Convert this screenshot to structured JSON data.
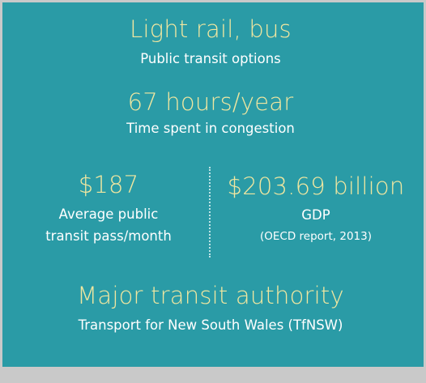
{
  "stats": [
    {
      "value": "Light rail, bus",
      "label": "Public transit options"
    },
    {
      "value": "67 hours/year",
      "label": "Time spent in congestion"
    },
    {
      "value": "$187",
      "label_lines": [
        "Average public",
        "transit pass/month"
      ]
    },
    {
      "value": "$203.69 billion",
      "label": "GDP",
      "note": "(OECD report, 2013)"
    },
    {
      "value": "Major transit authority",
      "label": "Transport for New South Wales (TfNSW)"
    }
  ]
}
